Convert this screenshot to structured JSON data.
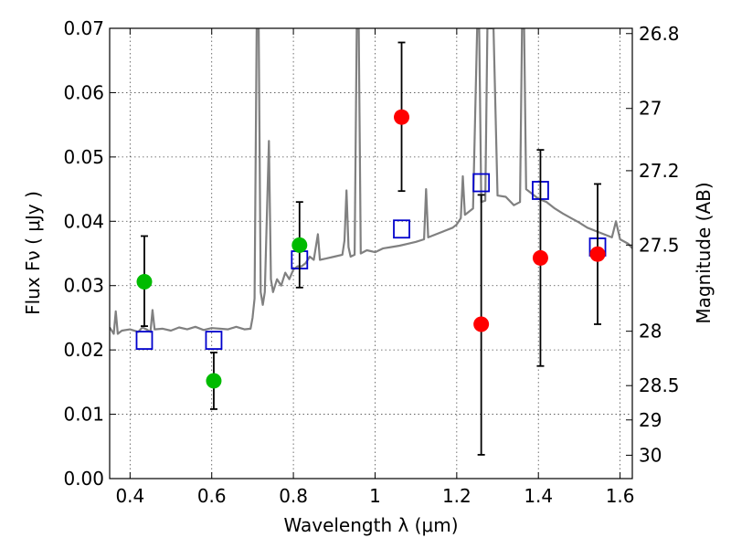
{
  "chart_data": {
    "type": "scatter",
    "title": "",
    "xlabel": "Wavelength  λ (μm)",
    "ylabel": "Flux  Fν  ( μJy )",
    "y2label": "Magnitude (AB)",
    "xlim": [
      0.35,
      1.63
    ],
    "ylim": [
      0.0,
      0.07
    ],
    "xticks": [
      0.4,
      0.6,
      0.8,
      1.0,
      1.2,
      1.4,
      1.6
    ],
    "xtick_labels": [
      "0.4",
      "0.6",
      "0.8",
      "1",
      "1.2",
      "1.4",
      "1.6"
    ],
    "yticks": [
      0.0,
      0.01,
      0.02,
      0.03,
      0.04,
      0.05,
      0.06,
      0.07
    ],
    "ytick_labels": [
      "0.00",
      "0.01",
      "0.02",
      "0.03",
      "0.04",
      "0.05",
      "0.06",
      "0.07"
    ],
    "y2ticks": [
      26.8,
      27,
      27.2,
      27.5,
      28,
      28.5,
      29,
      30
    ],
    "y2tick_labels": [
      "26.8",
      "27",
      "27.2",
      "27.5",
      "28",
      "28.5",
      "29",
      "30"
    ],
    "grid": true,
    "series": [
      {
        "kind": "line",
        "color": "#808080",
        "points": [
          [
            0.35,
            0.0235
          ],
          [
            0.36,
            0.0225
          ],
          [
            0.365,
            0.026
          ],
          [
            0.37,
            0.0225
          ],
          [
            0.38,
            0.023
          ],
          [
            0.4,
            0.0232
          ],
          [
            0.42,
            0.0228
          ],
          [
            0.43,
            0.0235
          ],
          [
            0.44,
            0.0232
          ],
          [
            0.45,
            0.0228
          ],
          [
            0.455,
            0.0262
          ],
          [
            0.46,
            0.0232
          ],
          [
            0.48,
            0.0233
          ],
          [
            0.5,
            0.023
          ],
          [
            0.52,
            0.0235
          ],
          [
            0.54,
            0.0232
          ],
          [
            0.56,
            0.0236
          ],
          [
            0.58,
            0.0231
          ],
          [
            0.6,
            0.0234
          ],
          [
            0.62,
            0.0233
          ],
          [
            0.64,
            0.0232
          ],
          [
            0.66,
            0.0236
          ],
          [
            0.68,
            0.0232
          ],
          [
            0.695,
            0.0233
          ],
          [
            0.7,
            0.025
          ],
          [
            0.705,
            0.028
          ],
          [
            0.71,
            0.07
          ],
          [
            0.715,
            0.07
          ],
          [
            0.72,
            0.029
          ],
          [
            0.725,
            0.027
          ],
          [
            0.73,
            0.029
          ],
          [
            0.74,
            0.0525
          ],
          [
            0.745,
            0.031
          ],
          [
            0.75,
            0.029
          ],
          [
            0.76,
            0.031
          ],
          [
            0.77,
            0.03
          ],
          [
            0.78,
            0.032
          ],
          [
            0.79,
            0.031
          ],
          [
            0.8,
            0.0325
          ],
          [
            0.81,
            0.033
          ],
          [
            0.82,
            0.033
          ],
          [
            0.83,
            0.0335
          ],
          [
            0.84,
            0.0345
          ],
          [
            0.85,
            0.034
          ],
          [
            0.86,
            0.038
          ],
          [
            0.865,
            0.034
          ],
          [
            0.88,
            0.0342
          ],
          [
            0.9,
            0.0345
          ],
          [
            0.92,
            0.0348
          ],
          [
            0.925,
            0.037
          ],
          [
            0.93,
            0.0448
          ],
          [
            0.935,
            0.036
          ],
          [
            0.94,
            0.0345
          ],
          [
            0.95,
            0.0348
          ],
          [
            0.955,
            0.07
          ],
          [
            0.96,
            0.07
          ],
          [
            0.965,
            0.035
          ],
          [
            0.98,
            0.0355
          ],
          [
            1.0,
            0.0352
          ],
          [
            1.02,
            0.0358
          ],
          [
            1.04,
            0.036
          ],
          [
            1.06,
            0.0362
          ],
          [
            1.08,
            0.0365
          ],
          [
            1.1,
            0.0368
          ],
          [
            1.12,
            0.0372
          ],
          [
            1.125,
            0.045
          ],
          [
            1.13,
            0.0375
          ],
          [
            1.15,
            0.038
          ],
          [
            1.17,
            0.0385
          ],
          [
            1.19,
            0.039
          ],
          [
            1.2,
            0.0395
          ],
          [
            1.21,
            0.0405
          ],
          [
            1.215,
            0.047
          ],
          [
            1.22,
            0.041
          ],
          [
            1.24,
            0.042
          ],
          [
            1.25,
            0.07
          ],
          [
            1.255,
            0.07
          ],
          [
            1.26,
            0.043
          ],
          [
            1.27,
            0.0432
          ],
          [
            1.275,
            0.07
          ],
          [
            1.29,
            0.07
          ],
          [
            1.3,
            0.044
          ],
          [
            1.32,
            0.0438
          ],
          [
            1.34,
            0.0425
          ],
          [
            1.355,
            0.043
          ],
          [
            1.36,
            0.07
          ],
          [
            1.365,
            0.07
          ],
          [
            1.37,
            0.045
          ],
          [
            1.38,
            0.0445
          ],
          [
            1.4,
            0.0435
          ],
          [
            1.42,
            0.043
          ],
          [
            1.44,
            0.042
          ],
          [
            1.46,
            0.0412
          ],
          [
            1.48,
            0.0405
          ],
          [
            1.5,
            0.0398
          ],
          [
            1.52,
            0.039
          ],
          [
            1.54,
            0.0385
          ],
          [
            1.56,
            0.038
          ],
          [
            1.58,
            0.0375
          ],
          [
            1.59,
            0.04
          ],
          [
            1.6,
            0.0372
          ],
          [
            1.62,
            0.0365
          ],
          [
            1.63,
            0.0358
          ]
        ]
      },
      {
        "kind": "markers",
        "marker": "square",
        "color": "#0000cc",
        "points": [
          [
            0.435,
            0.0215
          ],
          [
            0.605,
            0.0215
          ],
          [
            0.815,
            0.034
          ],
          [
            1.065,
            0.0388
          ],
          [
            1.26,
            0.046
          ],
          [
            1.405,
            0.0448
          ],
          [
            1.545,
            0.036
          ]
        ]
      },
      {
        "kind": "markers",
        "marker": "circle",
        "color": "#00bb00",
        "points": [
          {
            "x": 0.435,
            "y": 0.0306,
            "lo": 0.0237,
            "hi": 0.0377
          },
          {
            "x": 0.605,
            "y": 0.0152,
            "lo": 0.0108,
            "hi": 0.0196
          },
          {
            "x": 0.815,
            "y": 0.0363,
            "lo": 0.0297,
            "hi": 0.043
          }
        ]
      },
      {
        "kind": "markers",
        "marker": "circle",
        "color": "#ff0000",
        "points": [
          {
            "x": 1.065,
            "y": 0.0562,
            "lo": 0.0447,
            "hi": 0.0678
          },
          {
            "x": 1.26,
            "y": 0.024,
            "lo": 0.0037,
            "hi": 0.0441
          },
          {
            "x": 1.405,
            "y": 0.0343,
            "lo": 0.0175,
            "hi": 0.0511
          },
          {
            "x": 1.545,
            "y": 0.0349,
            "lo": 0.024,
            "hi": 0.0458
          }
        ]
      }
    ]
  }
}
